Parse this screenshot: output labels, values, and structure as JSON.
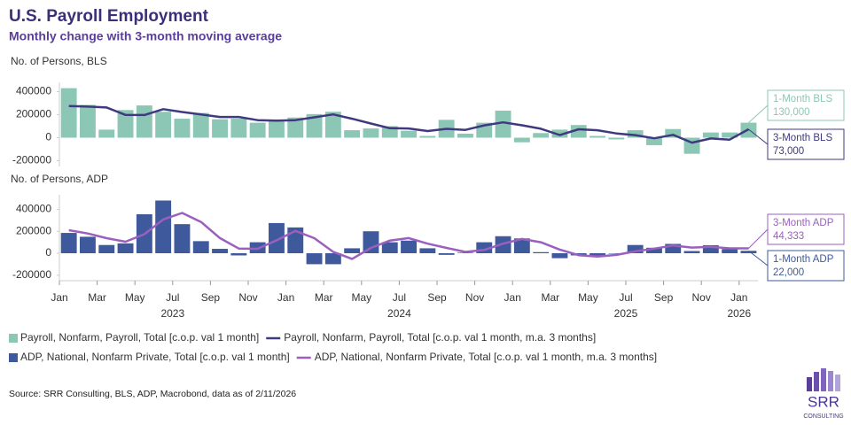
{
  "title": "U.S. Payroll Employment",
  "subtitle": "Monthly change with 3-month moving average",
  "source": "Source: SRR Consulting, BLS, ADP, Macrobond, data as of 2/11/2026",
  "logo": {
    "name": "SRR",
    "sub": "CONSULTING"
  },
  "chart_data": [
    {
      "type": "combo",
      "y_label": "No. of Persons, BLS",
      "x": [
        "2023-01",
        "2023-02",
        "2023-03",
        "2023-04",
        "2023-05",
        "2023-06",
        "2023-07",
        "2023-08",
        "2023-09",
        "2023-10",
        "2023-11",
        "2023-12",
        "2024-01",
        "2024-02",
        "2024-03",
        "2024-04",
        "2024-05",
        "2024-06",
        "2024-07",
        "2024-08",
        "2024-09",
        "2024-10",
        "2024-11",
        "2024-12",
        "2025-01",
        "2025-02",
        "2025-03",
        "2025-04",
        "2025-05",
        "2025-06",
        "2025-07",
        "2025-08",
        "2025-09",
        "2025-10",
        "2025-11",
        "2025-12",
        "2026-01"
      ],
      "ylim": [
        -250000,
        450000
      ],
      "yticks": [
        -200000,
        0,
        200000,
        400000
      ],
      "series": [
        {
          "name": "Payroll, Nonfarm, Payroll, Total [c.o.p. val 1 month]",
          "type": "bar",
          "color": "#8cc7b5",
          "callout": "1-Month BLS",
          "values": [
            430000,
            285000,
            70000,
            240000,
            280000,
            225000,
            165000,
            215000,
            160000,
            165000,
            130000,
            150000,
            175000,
            205000,
            225000,
            65000,
            80000,
            100000,
            60000,
            15000,
            155000,
            35000,
            130000,
            235000,
            -40000,
            40000,
            70000,
            110000,
            15000,
            -15000,
            65000,
            -65000,
            75000,
            -140000,
            45000,
            45000,
            130000
          ],
          "value_labels": [
            null,
            null,
            null,
            null,
            null,
            null,
            null,
            null,
            null,
            null,
            null,
            null,
            null,
            null,
            null,
            null,
            null,
            null,
            null,
            null,
            null,
            null,
            null,
            null,
            null,
            null,
            null,
            null,
            null,
            null,
            null,
            null,
            null,
            null,
            null,
            null,
            "130,000"
          ]
        },
        {
          "name": "Payroll, Nonfarm, Payroll, Total [c.o.p. val 1 month, m.a. 3 months]",
          "type": "line",
          "color": "#3f3a80",
          "callout": "3-Month BLS",
          "values": [
            275000,
            270000,
            262000,
            198000,
            197000,
            248000,
            223000,
            202000,
            180000,
            180000,
            152000,
            148000,
            152000,
            177000,
            202000,
            165000,
            123000,
            82000,
            80000,
            58000,
            77000,
            68000,
            107000,
            133000,
            108000,
            78000,
            23000,
            73000,
            65000,
            37000,
            22000,
            -5000,
            25000,
            -43000,
            -7000,
            -17000,
            73000
          ],
          "value_labels": [
            null,
            null,
            null,
            null,
            null,
            null,
            null,
            null,
            null,
            null,
            null,
            null,
            null,
            null,
            null,
            null,
            null,
            null,
            null,
            null,
            null,
            null,
            null,
            null,
            null,
            null,
            null,
            null,
            null,
            null,
            null,
            null,
            null,
            null,
            null,
            null,
            "73,000"
          ]
        }
      ]
    },
    {
      "type": "combo",
      "y_label": "No. of Persons, ADP",
      "x": [
        "2023-01",
        "2023-02",
        "2023-03",
        "2023-04",
        "2023-05",
        "2023-06",
        "2023-07",
        "2023-08",
        "2023-09",
        "2023-10",
        "2023-11",
        "2023-12",
        "2024-01",
        "2024-02",
        "2024-03",
        "2024-04",
        "2024-05",
        "2024-06",
        "2024-07",
        "2024-08",
        "2024-09",
        "2024-10",
        "2024-11",
        "2024-12",
        "2025-01",
        "2025-02",
        "2025-03",
        "2025-04",
        "2025-05",
        "2025-06",
        "2025-07",
        "2025-08",
        "2025-09",
        "2025-10",
        "2025-11",
        "2025-12",
        "2026-01"
      ],
      "ylim": [
        -250000,
        500000
      ],
      "yticks": [
        -200000,
        0,
        200000,
        400000
      ],
      "xticks": [
        {
          "value": "2023-01",
          "label": "Jan"
        },
        {
          "value": "2023-03",
          "label": "Mar"
        },
        {
          "value": "2023-05",
          "label": "May"
        },
        {
          "value": "2023-07",
          "label": "Jul"
        },
        {
          "value": "2023-09",
          "label": "Sep"
        },
        {
          "value": "2023-11",
          "label": "Nov"
        },
        {
          "value": "2024-01",
          "label": "Jan"
        },
        {
          "value": "2024-03",
          "label": "Mar"
        },
        {
          "value": "2024-05",
          "label": "May"
        },
        {
          "value": "2024-07",
          "label": "Jul"
        },
        {
          "value": "2024-09",
          "label": "Sep"
        },
        {
          "value": "2024-11",
          "label": "Nov"
        },
        {
          "value": "2025-01",
          "label": "Jan"
        },
        {
          "value": "2025-03",
          "label": "Mar"
        },
        {
          "value": "2025-05",
          "label": "May"
        },
        {
          "value": "2025-07",
          "label": "Jul"
        },
        {
          "value": "2025-09",
          "label": "Sep"
        },
        {
          "value": "2025-11",
          "label": "Nov"
        },
        {
          "value": "2026-01",
          "label": "Jan"
        }
      ],
      "year_ticks": [
        {
          "value": "2023-07",
          "label": "2023"
        },
        {
          "value": "2024-07",
          "label": "2024"
        },
        {
          "value": "2025-07",
          "label": "2025"
        },
        {
          "value": "2026-01",
          "label": "2026"
        }
      ],
      "series": [
        {
          "name": "ADP, National, Nonfarm Private, Total [c.o.p. val 1 month]",
          "type": "bar",
          "color": "#3f5a9c",
          "callout": "1-Month ADP",
          "values": [
            185000,
            150000,
            75000,
            90000,
            355000,
            480000,
            265000,
            110000,
            40000,
            -20000,
            100000,
            275000,
            235000,
            -100000,
            -100000,
            45000,
            200000,
            100000,
            115000,
            45000,
            -15000,
            5000,
            100000,
            155000,
            135000,
            10000,
            -45000,
            -20000,
            -25000,
            0,
            75000,
            50000,
            85000,
            20000,
            73000,
            38000,
            22000
          ],
          "value_labels": [
            null,
            null,
            null,
            null,
            null,
            null,
            null,
            null,
            null,
            null,
            null,
            null,
            null,
            null,
            null,
            null,
            null,
            null,
            null,
            null,
            null,
            null,
            null,
            null,
            null,
            null,
            null,
            null,
            null,
            null,
            null,
            null,
            null,
            null,
            null,
            null,
            "22,000"
          ]
        },
        {
          "name": "ADP, National, Nonfarm Private, Total [c.o.p. val 1 month, m.a. 3 months]",
          "type": "line",
          "color": "#9b5fc0",
          "callout": "3-Month ADP",
          "values": [
            210000,
            180000,
            137000,
            105000,
            173000,
            308000,
            367000,
            285000,
            138000,
            43000,
            40000,
            118000,
            203000,
            137000,
            12000,
            -52000,
            48000,
            115000,
            138000,
            87000,
            48000,
            12000,
            30000,
            87000,
            130000,
            100000,
            33000,
            -18000,
            -30000,
            -15000,
            17000,
            42000,
            70000,
            52000,
            59000,
            44000,
            44333
          ],
          "value_labels": [
            null,
            null,
            null,
            null,
            null,
            null,
            null,
            null,
            null,
            null,
            null,
            null,
            null,
            null,
            null,
            null,
            null,
            null,
            null,
            null,
            null,
            null,
            null,
            null,
            null,
            null,
            null,
            null,
            null,
            null,
            null,
            null,
            null,
            null,
            null,
            null,
            "44,333"
          ]
        }
      ]
    }
  ]
}
